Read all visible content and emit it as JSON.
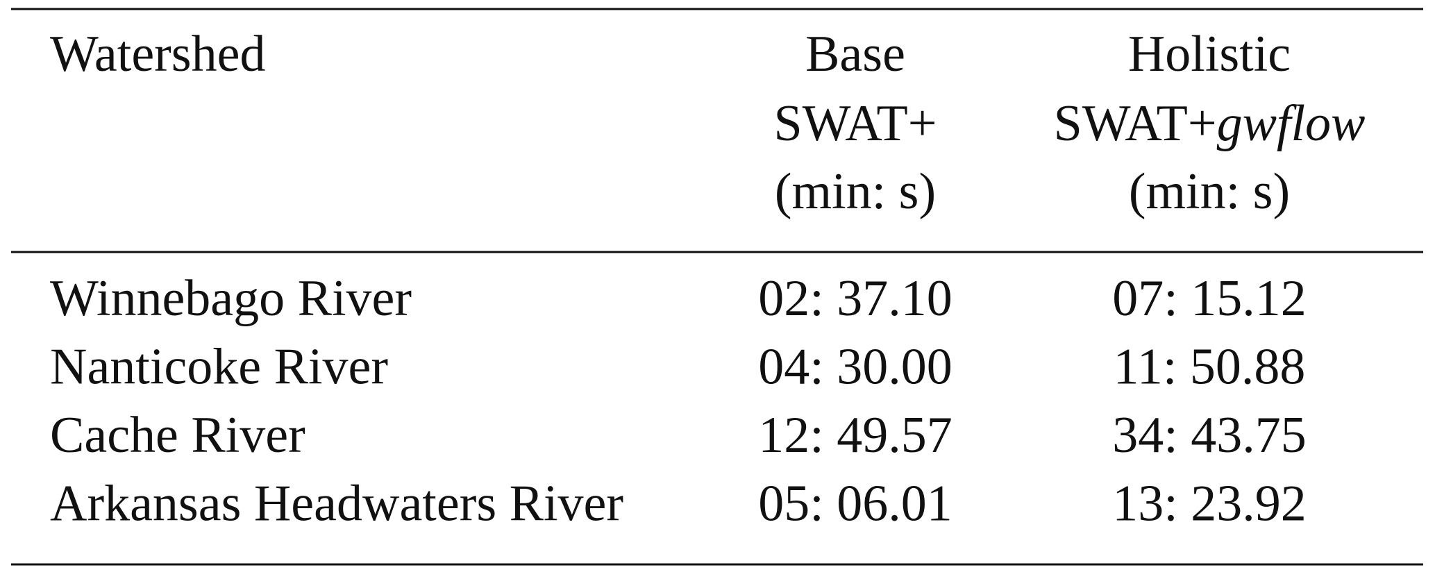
{
  "table": {
    "header": {
      "watershed": "Watershed",
      "base": [
        "Base",
        "SWAT+",
        "(min: s)"
      ],
      "holistic": {
        "line1": "Holistic",
        "line2": "SWAT+",
        "line2_italic": "gwflow",
        "line3": "(min: s)"
      }
    },
    "rows": [
      [
        "Winnebago River",
        "02: 37.10",
        "07: 15.12"
      ],
      [
        "Nanticoke River",
        "04: 30.00",
        "11: 50.88"
      ],
      [
        "Cache River",
        "12: 49.57",
        "34: 43.75"
      ],
      [
        "Arkansas Headwaters River",
        "05: 06.01",
        "13: 23.92"
      ]
    ]
  }
}
